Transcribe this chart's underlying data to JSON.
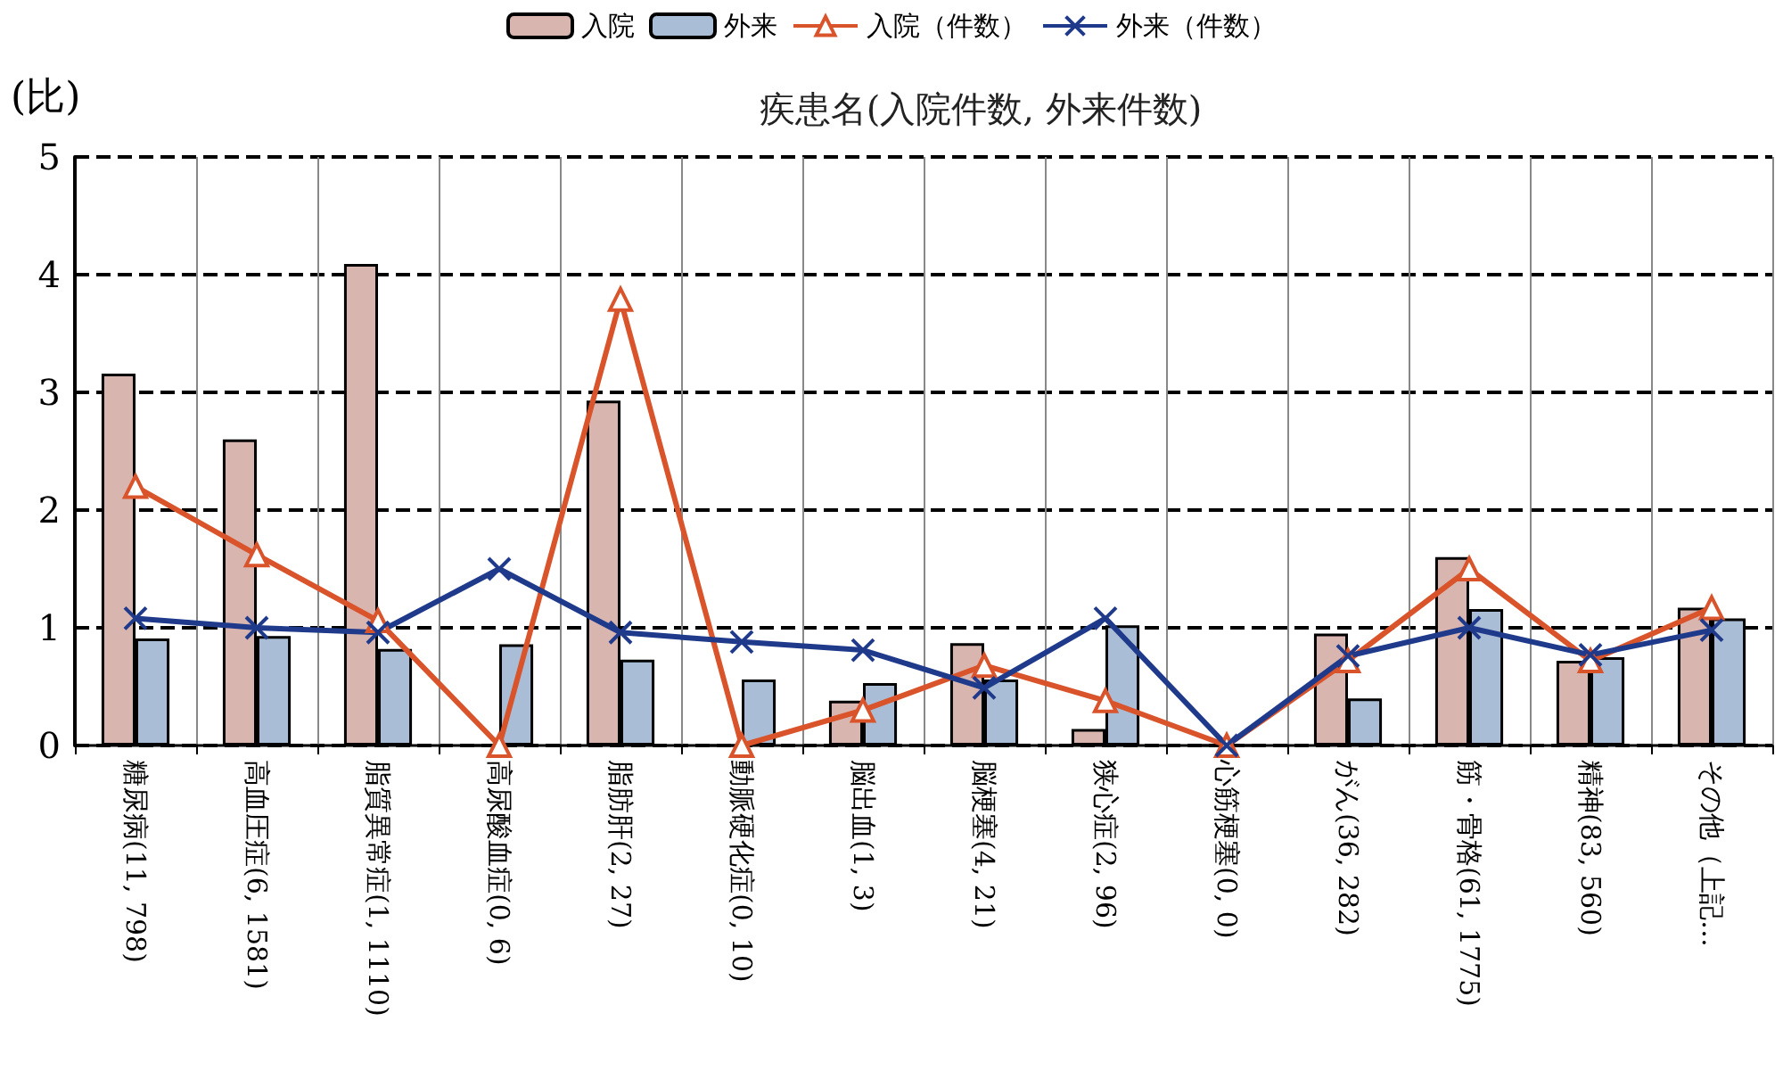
{
  "chart_data": {
    "type": "bar",
    "title": "疾患名(入院件数, 外来件数)",
    "ylabel": "(比)",
    "categories": [
      "糖尿病(11, 798)",
      "高血圧症(6, 1581)",
      "脂質異常症(1, 1110)",
      "高尿酸血症(0, 6)",
      "脂肪肝(2, 27)",
      "動脈硬化症(0, 10)",
      "脳出血(1, 3)",
      "脳梗塞(4, 21)",
      "狭心症(2, 96)",
      "心筋梗塞(0, 0)",
      "がん(36, 282)",
      "筋・骨格(61, 1775)",
      "精神(83, 560)",
      "その他（上記…"
    ],
    "series": [
      {
        "name": "入院",
        "color": "#d9b5b0",
        "values": [
          3.16,
          2.6,
          4.09,
          0,
          2.93,
          0,
          0.38,
          0.87,
          0.14,
          0,
          0.95,
          1.6,
          0.72,
          1.17
        ]
      },
      {
        "name": "外来",
        "color": "#a9bdd6",
        "values": [
          0.91,
          0.93,
          0.82,
          0.86,
          0.73,
          0.56,
          0.53,
          0.56,
          1.02,
          0,
          0.4,
          1.16,
          0.75,
          1.08
        ]
      },
      {
        "name": "入院（件数）",
        "type": "line",
        "marker": "triangle",
        "color": "#d9532b",
        "values": [
          2.2,
          1.62,
          1.06,
          0,
          3.79,
          0,
          0.3,
          0.68,
          0.38,
          0,
          0.72,
          1.5,
          0.72,
          1.17
        ]
      },
      {
        "name": "外来（件数）",
        "type": "line",
        "marker": "cross",
        "color": "#1f3a8a",
        "values": [
          1.08,
          1.0,
          0.96,
          1.5,
          0.96,
          0.88,
          0.81,
          0.49,
          1.08,
          0,
          0.76,
          1.0,
          0.77,
          0.98
        ]
      }
    ],
    "ylim": [
      0,
      5
    ],
    "yticks": [
      0,
      1,
      2,
      3,
      4,
      5
    ],
    "grid": true,
    "legend": "top"
  }
}
